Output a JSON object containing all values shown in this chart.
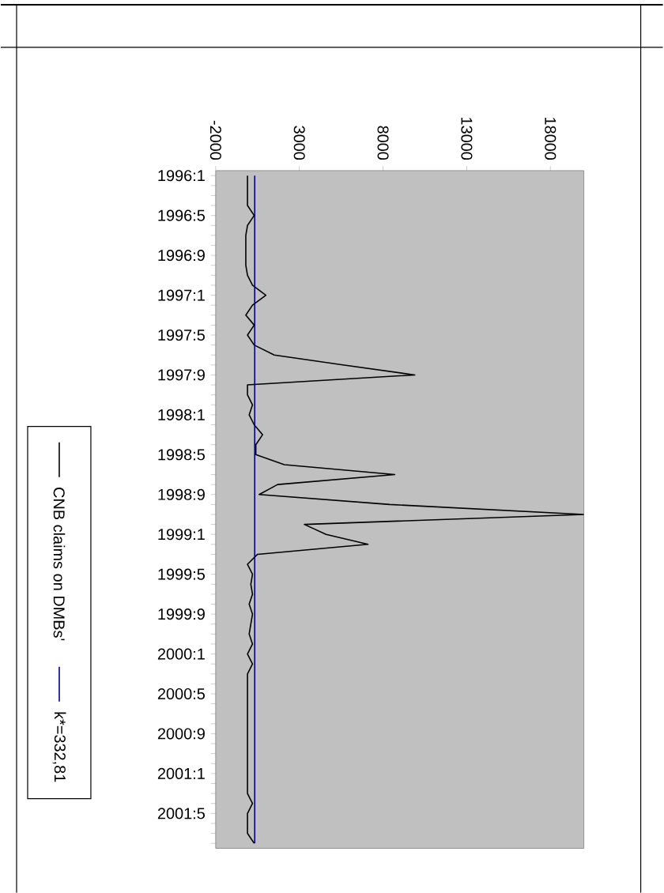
{
  "chart_data": {
    "type": "line",
    "orientation": "horizontal",
    "categories": [
      "1996:1",
      null,
      null,
      null,
      "1996:5",
      null,
      null,
      null,
      "1996:9",
      null,
      null,
      null,
      "1997:1",
      null,
      null,
      null,
      "1997:5",
      null,
      null,
      null,
      "1997:9",
      null,
      null,
      null,
      "1998:1",
      null,
      null,
      null,
      "1998:5",
      null,
      null,
      null,
      "1998:9",
      null,
      null,
      null,
      "1999:1",
      null,
      null,
      null,
      "1999:5",
      null,
      null,
      null,
      "1999:9",
      null,
      null,
      null,
      "2000:1",
      null,
      null,
      null,
      "2000:5",
      null,
      null,
      null,
      "2000:9",
      null,
      null,
      null,
      "2001:1",
      null,
      null,
      null,
      "2001:5",
      null,
      null,
      null
    ],
    "series": [
      {
        "name": "CNB claims on DMBs'",
        "color": "#000000",
        "values": [
          -100,
          -100,
          -100,
          -100,
          300,
          -100,
          -200,
          -200,
          -200,
          -200,
          -100,
          200,
          1000,
          200,
          -200,
          300,
          -100,
          300,
          1500,
          5600,
          9900,
          -100,
          -100,
          200,
          0,
          300,
          800,
          400,
          400,
          2100,
          8700,
          1700,
          600,
          8400,
          20000,
          3300,
          4600,
          7100,
          500,
          -100,
          200,
          100,
          200,
          0,
          200,
          100,
          0,
          200,
          -100,
          200,
          -100,
          -100,
          -100,
          -100,
          -100,
          -100,
          -100,
          -100,
          -100,
          -100,
          -100,
          -100,
          -100,
          200,
          -100,
          -100,
          -100,
          300
        ]
      },
      {
        "name": "k*=332,81",
        "color": "#000080",
        "values": [
          332.81,
          332.81,
          332.81,
          332.81,
          332.81,
          332.81,
          332.81,
          332.81,
          332.81,
          332.81,
          332.81,
          332.81,
          332.81,
          332.81,
          332.81,
          332.81,
          332.81,
          332.81,
          332.81,
          332.81,
          332.81,
          332.81,
          332.81,
          332.81,
          332.81,
          332.81,
          332.81,
          332.81,
          332.81,
          332.81,
          332.81,
          332.81,
          332.81,
          332.81,
          332.81,
          332.81,
          332.81,
          332.81,
          332.81,
          332.81,
          332.81,
          332.81,
          332.81,
          332.81,
          332.81,
          332.81,
          332.81,
          332.81,
          332.81,
          332.81,
          332.81,
          332.81,
          332.81,
          332.81,
          332.81,
          332.81,
          332.81,
          332.81,
          332.81,
          332.81,
          332.81,
          332.81,
          332.81,
          332.81,
          332.81,
          332.81,
          332.81,
          332.81
        ]
      }
    ],
    "xlim": [
      -2000,
      20000
    ],
    "xticks": [
      -2000,
      3000,
      8000,
      13000,
      18000
    ],
    "legend": "left",
    "grid": false,
    "marker": "none",
    "line_style": "solid"
  }
}
